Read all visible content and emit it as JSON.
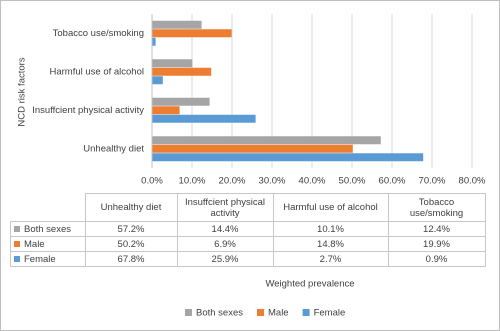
{
  "chart_data": {
    "type": "hbar",
    "y_axis_label": "NCD risk factors",
    "x_axis_label": "Weighted prevalence",
    "categories": [
      "Unhealthy diet",
      "Insuffcient physical activity",
      "Harmful use of alcohol",
      "Tobacco use/smoking"
    ],
    "series": [
      {
        "name": "Both sexes",
        "color": "#a5a5a5",
        "values": [
          57.2,
          14.4,
          10.1,
          12.4
        ],
        "value_labels": [
          "57.2%",
          "14.4%",
          "10.1%",
          "12.4%"
        ]
      },
      {
        "name": "Male",
        "color": "#ed7d31",
        "values": [
          50.2,
          6.9,
          14.8,
          19.9
        ],
        "value_labels": [
          "50.2%",
          "6.9%",
          "14.8%",
          "19.9%"
        ]
      },
      {
        "name": "Female",
        "color": "#5b9bd5",
        "values": [
          67.8,
          25.9,
          2.7,
          0.9
        ],
        "value_labels": [
          "67.8%",
          "25.9%",
          "2.7%",
          "0.9%"
        ]
      }
    ],
    "xlim": [
      0,
      80
    ],
    "xticks": [
      {
        "value": 0,
        "label": "0.0%"
      },
      {
        "value": 10,
        "label": "10.0%"
      },
      {
        "value": 20,
        "label": "20.0%"
      },
      {
        "value": 30,
        "label": "30.0%"
      },
      {
        "value": 40,
        "label": "40.0%"
      },
      {
        "value": 50,
        "label": "50.0%"
      },
      {
        "value": 60,
        "label": "60.0%"
      },
      {
        "value": 70,
        "label": "70.0%"
      },
      {
        "value": 80,
        "label": "80.0%"
      }
    ],
    "grid": true,
    "legend": "bottom"
  }
}
